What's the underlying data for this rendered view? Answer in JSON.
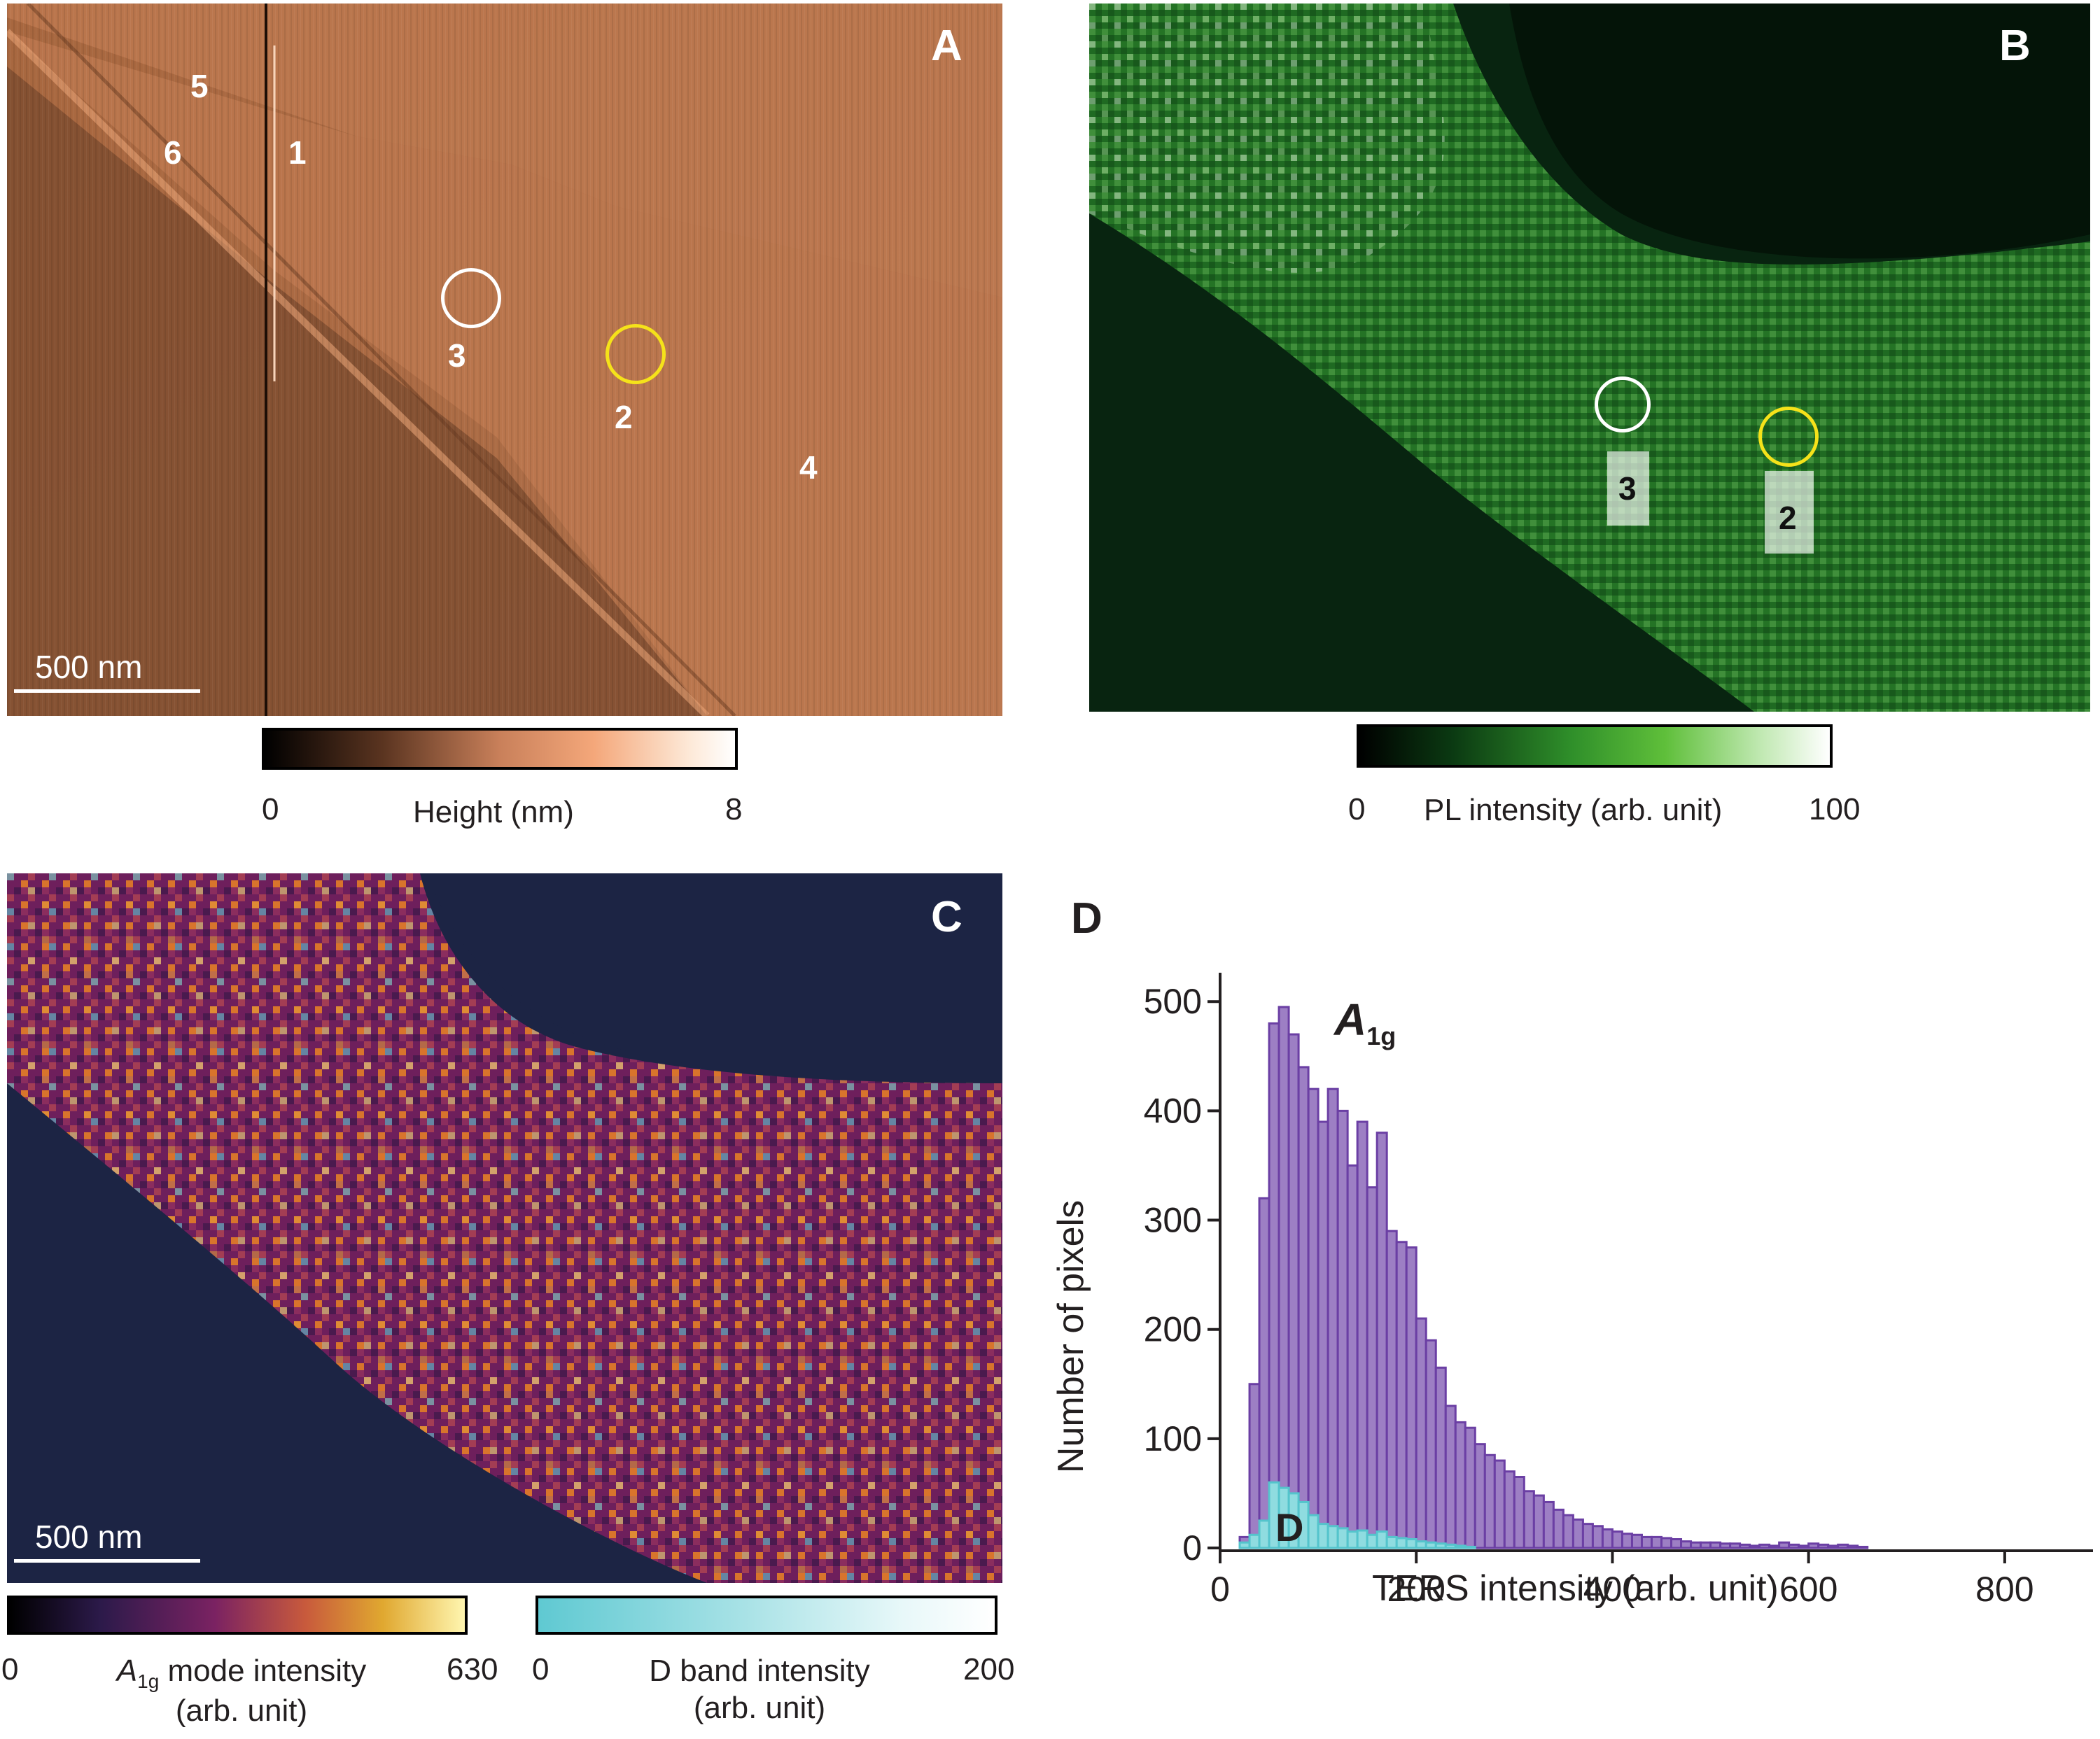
{
  "panels": {
    "A": {
      "letter": "A",
      "scale_bar": "500 nm",
      "labels": [
        "1",
        "2",
        "3",
        "4",
        "5",
        "6"
      ],
      "colorbar": {
        "min": "0",
        "max": "8",
        "label": "Height (nm)"
      },
      "colors": {
        "dark": "#2a1a10",
        "mid": "#c98257",
        "light": "#fff5ea",
        "circle_white": "#ffffff",
        "circle_yellow": "#f5e21a"
      }
    },
    "B": {
      "letter": "B",
      "labels": [
        "3",
        "2"
      ],
      "colorbar": {
        "min": "0",
        "max": "100",
        "label": "PL intensity (arb. unit)"
      },
      "colors": {
        "dark": "#061a0a",
        "mid": "#3fa534",
        "light": "#ffffff"
      }
    },
    "C": {
      "letter": "C",
      "scale_bar": "500 nm",
      "colorbar_a1g": {
        "min": "0",
        "max": "630",
        "label_main": "A",
        "label_sub": "1g",
        "label_rest": " mode intensity",
        "label_line2": "(arb. unit)"
      },
      "colorbar_d": {
        "min": "0",
        "max": "200",
        "label": "D band intensity",
        "label_line2": "(arb. unit)"
      },
      "colors": {
        "background": "#1c2444",
        "purple": "#7a2262",
        "orange": "#d8742c",
        "yellow": "#f3e37a",
        "cyan": "#5fc9d2"
      }
    },
    "D": {
      "letter": "D"
    }
  },
  "chart_data": {
    "type": "bar",
    "xlabel": "TERS intensity (arb. unit)",
    "ylabel": "Number of pixels",
    "xlim": [
      0,
      890
    ],
    "ylim": [
      0,
      520
    ],
    "xticks": [
      "0",
      "200",
      "400",
      "600",
      "800"
    ],
    "yticks": [
      "0",
      "100",
      "200",
      "300",
      "400",
      "500"
    ],
    "bin_width": 10,
    "series": [
      {
        "name_main": "A",
        "name_sub": "1g",
        "color": "#9d7fc4",
        "edge": "#6b3fa4",
        "x": [
          20,
          30,
          40,
          50,
          60,
          70,
          80,
          90,
          100,
          110,
          120,
          130,
          140,
          150,
          160,
          170,
          180,
          190,
          200,
          210,
          220,
          230,
          240,
          250,
          260,
          270,
          280,
          290,
          300,
          310,
          320,
          330,
          340,
          350,
          360,
          370,
          380,
          390,
          400,
          410,
          420,
          430,
          440,
          450,
          460,
          470,
          480,
          490,
          500,
          510,
          520,
          530,
          540,
          550,
          560,
          570,
          580,
          590,
          600,
          610,
          620,
          630,
          640,
          650
        ],
        "values": [
          10,
          150,
          320,
          480,
          495,
          470,
          440,
          420,
          390,
          420,
          400,
          350,
          390,
          330,
          380,
          290,
          280,
          275,
          210,
          190,
          165,
          130,
          115,
          110,
          95,
          85,
          80,
          70,
          65,
          52,
          48,
          42,
          35,
          30,
          26,
          22,
          20,
          17,
          15,
          13,
          12,
          10,
          10,
          9,
          8,
          6,
          5,
          5,
          5,
          4,
          4,
          3,
          2,
          3,
          2,
          5,
          3,
          2,
          4,
          3,
          2,
          3,
          2,
          1
        ]
      },
      {
        "name_main": "D",
        "name_sub": "",
        "color": "#8fdce0",
        "edge": "#54c4cc",
        "x": [
          20,
          30,
          40,
          50,
          60,
          70,
          80,
          90,
          100,
          110,
          120,
          130,
          140,
          150,
          160,
          170,
          180,
          190,
          200,
          210,
          220,
          230,
          240,
          250
        ],
        "values": [
          5,
          12,
          25,
          60,
          55,
          50,
          42,
          30,
          22,
          20,
          18,
          15,
          16,
          12,
          15,
          10,
          9,
          8,
          6,
          5,
          4,
          3,
          2,
          1
        ]
      }
    ]
  }
}
